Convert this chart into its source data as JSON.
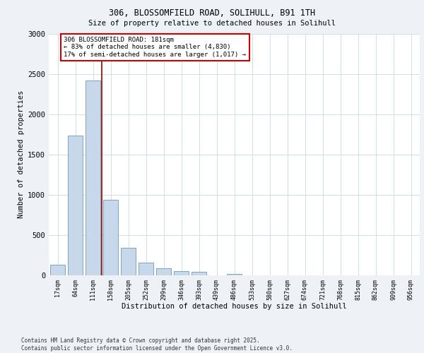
{
  "title_line1": "306, BLOSSOMFIELD ROAD, SOLIHULL, B91 1TH",
  "title_line2": "Size of property relative to detached houses in Solihull",
  "xlabel": "Distribution of detached houses by size in Solihull",
  "ylabel": "Number of detached properties",
  "categories": [
    "17sqm",
    "64sqm",
    "111sqm",
    "158sqm",
    "205sqm",
    "252sqm",
    "299sqm",
    "346sqm",
    "393sqm",
    "439sqm",
    "486sqm",
    "533sqm",
    "580sqm",
    "627sqm",
    "674sqm",
    "721sqm",
    "768sqm",
    "815sqm",
    "862sqm",
    "909sqm",
    "956sqm"
  ],
  "values": [
    130,
    1730,
    2420,
    940,
    340,
    160,
    90,
    55,
    40,
    0,
    20,
    0,
    0,
    0,
    0,
    0,
    0,
    0,
    0,
    0,
    0
  ],
  "bar_color": "#c8d8eb",
  "bar_edge_color": "#7098b8",
  "vline_color": "#990000",
  "annotation_text": "306 BLOSSOMFIELD ROAD: 181sqm\n← 83% of detached houses are smaller (4,830)\n17% of semi-detached houses are larger (1,017) →",
  "annotation_box_color": "#ffffff",
  "annotation_box_edge_color": "#cc0000",
  "ylim": [
    0,
    3000
  ],
  "yticks": [
    0,
    500,
    1000,
    1500,
    2000,
    2500,
    3000
  ],
  "footer_text": "Contains HM Land Registry data © Crown copyright and database right 2025.\nContains public sector information licensed under the Open Government Licence v3.0.",
  "bg_color": "#eef2f6",
  "plot_bg_color": "#ffffff",
  "grid_color": "#ccd8e4"
}
